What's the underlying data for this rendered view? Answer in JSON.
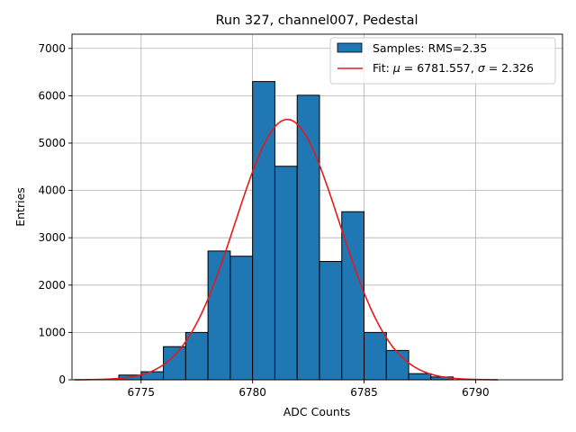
{
  "chart_data": {
    "type": "bar",
    "title": "Run 327, channel007, Pedestal",
    "xlabel": "ADC Counts",
    "ylabel": "Entries",
    "xlim": [
      6771.9,
      6793.9
    ],
    "ylim": [
      0,
      7300
    ],
    "xticks": [
      6775,
      6780,
      6785,
      6790
    ],
    "yticks": [
      0,
      1000,
      2000,
      3000,
      4000,
      5000,
      6000,
      7000
    ],
    "grid": true,
    "legend_position": "top-right",
    "bin_width": 1,
    "bins": [
      {
        "x0": 6774,
        "value": 100
      },
      {
        "x0": 6775,
        "value": 170
      },
      {
        "x0": 6776,
        "value": 700
      },
      {
        "x0": 6777,
        "value": 1000
      },
      {
        "x0": 6778,
        "value": 2720
      },
      {
        "x0": 6779,
        "value": 2610
      },
      {
        "x0": 6780,
        "value": 6300
      },
      {
        "x0": 6781,
        "value": 4510
      },
      {
        "x0": 6782,
        "value": 6010
      },
      {
        "x0": 6783,
        "value": 2500
      },
      {
        "x0": 6784,
        "value": 3550
      },
      {
        "x0": 6785,
        "value": 1000
      },
      {
        "x0": 6786,
        "value": 620
      },
      {
        "x0": 6787,
        "value": 130
      },
      {
        "x0": 6788,
        "value": 60
      }
    ],
    "fit": {
      "mu": 6781.557,
      "sigma": 2.326,
      "amplitude": 5500,
      "x_range": [
        6772,
        6791
      ]
    },
    "series": [
      {
        "name": "Samples: RMS=2.35",
        "kind": "histogram",
        "color": "#1f77b4"
      },
      {
        "name": "Fit: μ = 6781.557, σ = 2.326",
        "kind": "line",
        "color": "#e41a1c"
      }
    ],
    "legend": {
      "samples_label": "Samples: RMS=2.35",
      "fit_label_prefix": "Fit: ",
      "fit_mu_symbol": "μ",
      "fit_mu_text": " = 6781.557, ",
      "fit_sigma_symbol": "σ",
      "fit_sigma_text": " = 2.326"
    }
  }
}
